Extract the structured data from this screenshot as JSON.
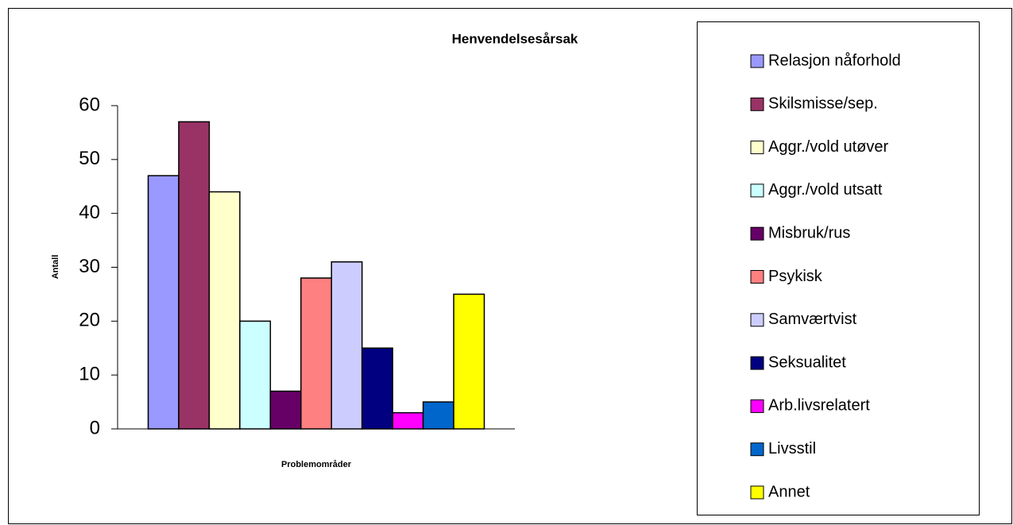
{
  "chart_data": {
    "type": "bar",
    "title": "Henvendelsesårsak",
    "x_label": "Problemområder",
    "y_label": "Antall",
    "categories": [
      null
    ],
    "series": [
      {
        "name": "Relasjon nåforhold",
        "color": "#9999ff",
        "values": [
          47
        ]
      },
      {
        "name": "Skilsmisse/sep.",
        "color": "#993366",
        "values": [
          57
        ]
      },
      {
        "name": "Aggr./vold utøver",
        "color": "#ffffcc",
        "values": [
          44
        ]
      },
      {
        "name": "Aggr./vold utsatt",
        "color": "#ccffff",
        "values": [
          20
        ]
      },
      {
        "name": "Misbruk/rus",
        "color": "#660066",
        "values": [
          7
        ]
      },
      {
        "name": "Psykisk",
        "color": "#ff8080",
        "values": [
          28
        ]
      },
      {
        "name": "Samværtvist",
        "color": "#ccccff",
        "values": [
          31
        ]
      },
      {
        "name": "Seksualitet",
        "color": "#000080",
        "values": [
          15
        ]
      },
      {
        "name": "Arb.livsrelatert",
        "color": "#ff00ff",
        "values": [
          3
        ]
      },
      {
        "name": "Livsstil",
        "color": "#0066cc",
        "values": [
          5
        ]
      },
      {
        "name": "Annet",
        "color": "#ffff00",
        "values": [
          25
        ]
      }
    ],
    "ylim": [
      0,
      60
    ],
    "yticks": [
      0,
      10,
      20,
      30,
      40,
      50,
      60
    ],
    "grid": false,
    "legend": "right"
  }
}
